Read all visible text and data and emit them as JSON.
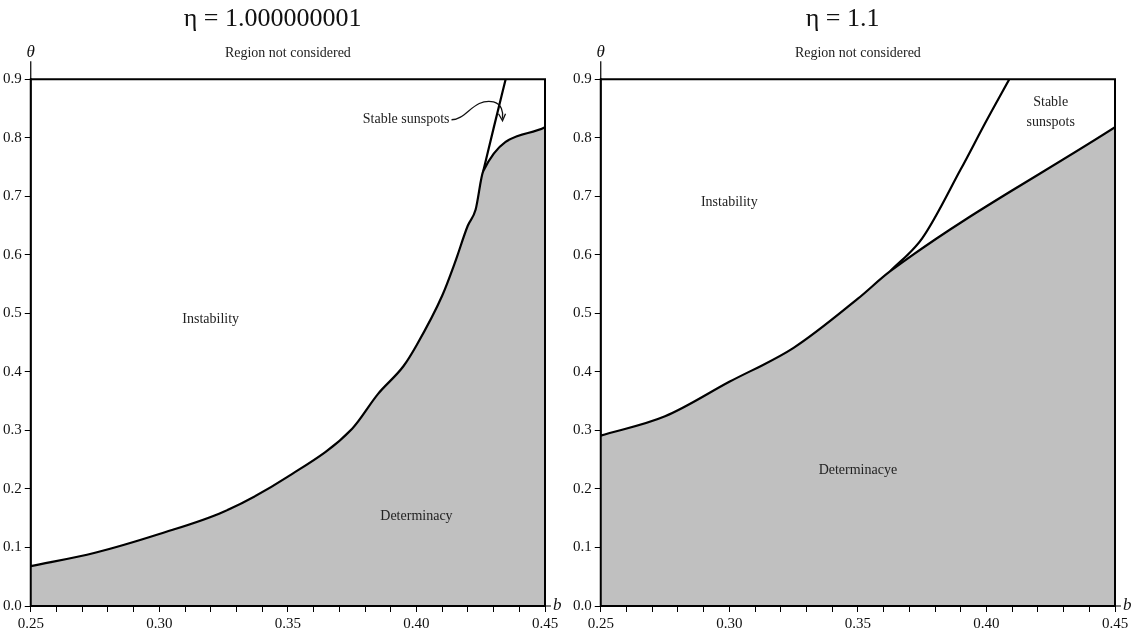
{
  "chart_data": [
    {
      "type": "area",
      "title": "η = 1.000000001",
      "xlabel": "b",
      "ylabel": "θ",
      "xlim": [
        0.25,
        0.45
      ],
      "ylim": [
        0,
        0.9
      ],
      "xticks": [
        {
          "value": 0.25,
          "label": "0.25"
        },
        {
          "value": 0.26,
          "label": null
        },
        {
          "value": 0.27,
          "label": null
        },
        {
          "value": 0.28,
          "label": null
        },
        {
          "value": 0.29,
          "label": null
        },
        {
          "value": 0.3,
          "label": "0.30"
        },
        {
          "value": 0.31,
          "label": null
        },
        {
          "value": 0.32,
          "label": null
        },
        {
          "value": 0.33,
          "label": null
        },
        {
          "value": 0.34,
          "label": null
        },
        {
          "value": 0.35,
          "label": "0.35"
        },
        {
          "value": 0.36,
          "label": null
        },
        {
          "value": 0.37,
          "label": null
        },
        {
          "value": 0.38,
          "label": null
        },
        {
          "value": 0.39,
          "label": null
        },
        {
          "value": 0.4,
          "label": "0.40"
        },
        {
          "value": 0.41,
          "label": null
        },
        {
          "value": 0.42,
          "label": null
        },
        {
          "value": 0.43,
          "label": null
        },
        {
          "value": 0.44,
          "label": null
        },
        {
          "value": 0.45,
          "label": "0.45"
        }
      ],
      "yticks": [
        {
          "value": 0,
          "label": "0.0"
        },
        0.1,
        0.2,
        0.3,
        0.4,
        0.5,
        0.6,
        0.7,
        0.8,
        0.9
      ],
      "series": [
        {
          "type": "area",
          "color": "#c0c0c0",
          "x": [
            0.25,
            0.275,
            0.3,
            0.325,
            0.35,
            0.375,
            0.385,
            0.395,
            0.4,
            0.41,
            0.415,
            0.42,
            0.423,
            0.426,
            0.45
          ],
          "values": [
            0.068,
            0.091,
            0.123,
            0.161,
            0.221,
            0.303,
            0.362,
            0.41,
            0.445,
            0.53,
            0.587,
            0.65,
            0.677,
            0.743,
            0.818
          ]
        },
        {
          "type": "line",
          "color": "#000000",
          "x": [
            0.426,
            0.43,
            0.4347
          ],
          "values": [
            0.743,
            0.816,
            0.9
          ]
        }
      ],
      "annotations": [
        "Region not considered",
        "Instability",
        "Stable sunspots",
        "Determinacy"
      ]
    },
    {
      "type": "area",
      "title": "η = 1.1",
      "xlabel": "b",
      "ylabel": "θ",
      "xlim": [
        0.25,
        0.45
      ],
      "ylim": [
        0,
        0.9
      ],
      "xticks": [
        {
          "value": 0.25,
          "label": "0.25"
        },
        {
          "value": 0.26,
          "label": null
        },
        {
          "value": 0.27,
          "label": null
        },
        {
          "value": 0.28,
          "label": null
        },
        {
          "value": 0.29,
          "label": null
        },
        {
          "value": 0.3,
          "label": "0.30"
        },
        {
          "value": 0.31,
          "label": null
        },
        {
          "value": 0.32,
          "label": null
        },
        {
          "value": 0.33,
          "label": null
        },
        {
          "value": 0.34,
          "label": null
        },
        {
          "value": 0.35,
          "label": "0.35"
        },
        {
          "value": 0.36,
          "label": null
        },
        {
          "value": 0.37,
          "label": null
        },
        {
          "value": 0.38,
          "label": null
        },
        {
          "value": 0.39,
          "label": null
        },
        {
          "value": 0.4,
          "label": "0.40"
        },
        {
          "value": 0.41,
          "label": null
        },
        {
          "value": 0.42,
          "label": null
        },
        {
          "value": 0.43,
          "label": null
        },
        {
          "value": 0.44,
          "label": null
        },
        {
          "value": 0.45,
          "label": "0.45"
        }
      ],
      "yticks": [
        {
          "value": 0,
          "label": "0.0"
        },
        0.1,
        0.2,
        0.3,
        0.4,
        0.5,
        0.6,
        0.7,
        0.8,
        0.9
      ],
      "series": [
        {
          "type": "area",
          "color": "#c0c0c0",
          "x": [
            0.25,
            0.275,
            0.3,
            0.325,
            0.35,
            0.3626,
            0.45
          ],
          "values": [
            0.291,
            0.324,
            0.383,
            0.441,
            0.525,
            0.572,
            0.818
          ]
        },
        {
          "type": "line",
          "color": "#000000",
          "x": [
            0.3626,
            0.375,
            0.39,
            0.4,
            0.4089
          ],
          "values": [
            0.572,
            0.628,
            0.746,
            0.829,
            0.9
          ]
        }
      ],
      "annotations": [
        "Region not considered",
        "Instability",
        "Stable\nsunspots",
        "Determinacye"
      ]
    }
  ]
}
